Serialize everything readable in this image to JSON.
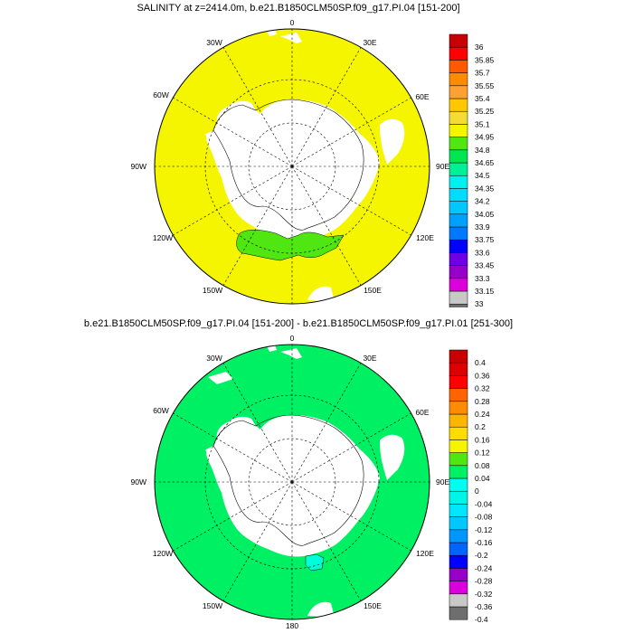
{
  "panels": [
    {
      "title": "SALINITY at z=2414.0m, b.e21.B1850CLM50SP.f09_g17.PI.04 [151-200]",
      "ocean_color": "#f5f500",
      "anomaly": {
        "color": "#50e612"
      },
      "colorbar": {
        "labels": [
          "36",
          "35.85",
          "35.7",
          "35.55",
          "35.4",
          "35.25",
          "35.1",
          "34.95",
          "34.8",
          "34.65",
          "34.5",
          "34.35",
          "34.2",
          "34.05",
          "33.9",
          "33.75",
          "33.6",
          "33.45",
          "33.3",
          "33.15",
          "33"
        ],
        "colors": [
          "#6e6e6e",
          "#c8c8c8",
          "#dc00dc",
          "#9600c8",
          "#6e00e6",
          "#0000ff",
          "#0078ff",
          "#00a0ff",
          "#00c8ff",
          "#00dcff",
          "#00f0f0",
          "#00f096",
          "#00e650",
          "#50e612",
          "#f5f500",
          "#f5dc32",
          "#ffc800",
          "#ffa032",
          "#ff8c00",
          "#ff5a00",
          "#ff0000",
          "#c80000"
        ]
      }
    },
    {
      "title": "b.e21.B1850CLM50SP.f09_g17.PI.04 [151-200] - b.e21.B1850CLM50SP.f09_g17.PI.01 [251-300]",
      "ocean_color": "#00f064",
      "anomaly": {
        "color": "#00ffd8"
      },
      "colorbar": {
        "labels": [
          "0.4",
          "0.36",
          "0.32",
          "0.28",
          "0.24",
          "0.2",
          "0.16",
          "0.12",
          "0.08",
          "0.04",
          "0",
          "-0.04",
          "-0.08",
          "-0.12",
          "-0.16",
          "-0.2",
          "-0.24",
          "-0.28",
          "-0.32",
          "-0.36",
          "-0.4"
        ],
        "colors": [
          "#6e6e6e",
          "#c8c8c8",
          "#dc00dc",
          "#9600c8",
          "#0000ff",
          "#0064ff",
          "#0096ff",
          "#00c8ff",
          "#00e6ff",
          "#00f5e6",
          "#00fff0",
          "#00f064",
          "#50e612",
          "#f5f500",
          "#ffdc00",
          "#ffb400",
          "#ff8c00",
          "#ff6400",
          "#ff0000",
          "#dc0000",
          "#c80000"
        ]
      }
    }
  ],
  "map_labels": {
    "top": "0",
    "bottom": "180",
    "left": "90W",
    "right": "90E",
    "upper_left_inner": "30W",
    "upper_right_inner": "30E",
    "upper_left_outer": "60W",
    "upper_right_outer": "60E",
    "lower_left_outer": "120W",
    "lower_right_outer": "120E",
    "lower_left_inner": "150W",
    "lower_right_inner": "150E"
  }
}
